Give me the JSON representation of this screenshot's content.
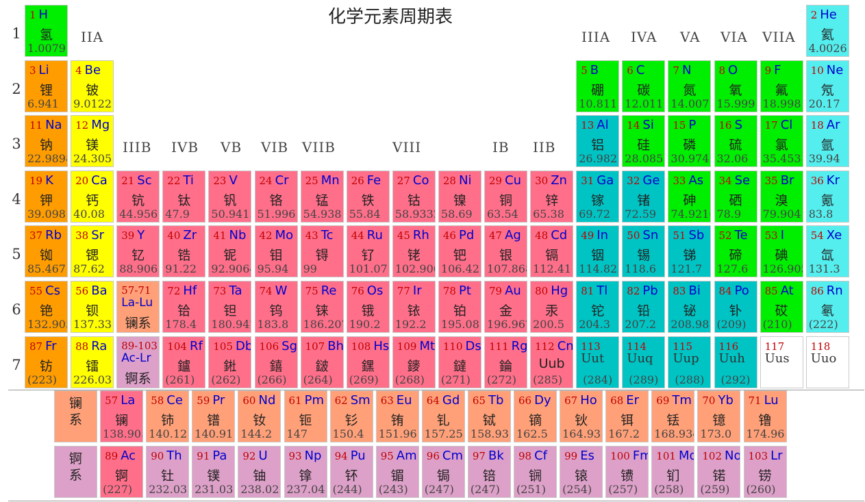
{
  "title": "化学元素周期表",
  "periods": [
    "1",
    "2",
    "3",
    "4",
    "5",
    "6",
    "7"
  ],
  "group_labels": [
    "IIA",
    "IIIA",
    "IVA",
    "VA",
    "VIA",
    "VIIA",
    "IIIB",
    "IVB",
    "VB",
    "VIB",
    "VIIB",
    "VIII",
    "IB",
    "IIB"
  ],
  "colors": {
    "alkali": "#ff9d00",
    "alkaline": "#ffff00",
    "nonmetal": "#00ee00",
    "noble": "#55eeee",
    "transition": "#ff6f8a",
    "poor": "#00c4c4",
    "lanthanide": "#ffa078",
    "actinide": "#dda0c8",
    "unknown": "#ffffff"
  },
  "elements": [
    {
      "n": "1",
      "s": "H",
      "c": "氢",
      "m": "1.0079",
      "t": "nonmetal"
    },
    {
      "n": "2",
      "s": "He",
      "c": "氦",
      "m": "4.0026",
      "t": "noble"
    },
    {
      "n": "3",
      "s": "Li",
      "c": "锂",
      "m": "6.941",
      "t": "alkali"
    },
    {
      "n": "4",
      "s": "Be",
      "c": "铍",
      "m": "9.0122",
      "t": "alkaline"
    },
    {
      "n": "5",
      "s": "B",
      "c": "硼",
      "m": "10.811",
      "t": "nonmetal"
    },
    {
      "n": "6",
      "s": "C",
      "c": "碳",
      "m": "12.011",
      "t": "nonmetal"
    },
    {
      "n": "7",
      "s": "N",
      "c": "氮",
      "m": "14.007",
      "t": "nonmetal"
    },
    {
      "n": "8",
      "s": "O",
      "c": "氧",
      "m": "15.999",
      "t": "nonmetal"
    },
    {
      "n": "9",
      "s": "F",
      "c": "氟",
      "m": "18.998",
      "t": "nonmetal"
    },
    {
      "n": "10",
      "s": "Ne",
      "c": "氖",
      "m": "20.17",
      "t": "noble"
    },
    {
      "n": "11",
      "s": "Na",
      "c": "钠",
      "m": "22.9898",
      "t": "alkali"
    },
    {
      "n": "12",
      "s": "Mg",
      "c": "镁",
      "m": "24.305",
      "t": "alkaline"
    },
    {
      "n": "13",
      "s": "Al",
      "c": "铝",
      "m": "26.982",
      "t": "poor"
    },
    {
      "n": "14",
      "s": "Si",
      "c": "硅",
      "m": "28.085",
      "t": "nonmetal"
    },
    {
      "n": "15",
      "s": "P",
      "c": "磷",
      "m": "30.974",
      "t": "nonmetal"
    },
    {
      "n": "16",
      "s": "S",
      "c": "硫",
      "m": "32.06",
      "t": "nonmetal"
    },
    {
      "n": "17",
      "s": "Cl",
      "c": "氯",
      "m": "35.453",
      "t": "nonmetal"
    },
    {
      "n": "18",
      "s": "Ar",
      "c": "氩",
      "m": "39.94",
      "t": "noble"
    },
    {
      "n": "19",
      "s": "K",
      "c": "钾",
      "m": "39.098",
      "t": "alkali"
    },
    {
      "n": "20",
      "s": "Ca",
      "c": "钙",
      "m": "40.08",
      "t": "alkaline"
    },
    {
      "n": "21",
      "s": "Sc",
      "c": "钪",
      "m": "44.956",
      "t": "transition"
    },
    {
      "n": "22",
      "s": "Ti",
      "c": "钛",
      "m": "47.9",
      "t": "transition"
    },
    {
      "n": "23",
      "s": "V",
      "c": "钒",
      "m": "50.9415",
      "t": "transition"
    },
    {
      "n": "24",
      "s": "Cr",
      "c": "铬",
      "m": "51.996",
      "t": "transition"
    },
    {
      "n": "25",
      "s": "Mn",
      "c": "锰",
      "m": "54.938",
      "t": "transition"
    },
    {
      "n": "26",
      "s": "Fe",
      "c": "铁",
      "m": "55.84",
      "t": "transition"
    },
    {
      "n": "27",
      "s": "Co",
      "c": "钴",
      "m": "58.9332",
      "t": "transition"
    },
    {
      "n": "28",
      "s": "Ni",
      "c": "镍",
      "m": "58.69",
      "t": "transition"
    },
    {
      "n": "29",
      "s": "Cu",
      "c": "铜",
      "m": "63.54",
      "t": "transition"
    },
    {
      "n": "30",
      "s": "Zn",
      "c": "锌",
      "m": "65.38",
      "t": "transition"
    },
    {
      "n": "31",
      "s": "Ga",
      "c": "镓",
      "m": "69.72",
      "t": "poor"
    },
    {
      "n": "32",
      "s": "Ge",
      "c": "锗",
      "m": "72.59",
      "t": "poor"
    },
    {
      "n": "33",
      "s": "As",
      "c": "砷",
      "m": "74.9216",
      "t": "nonmetal"
    },
    {
      "n": "34",
      "s": "Se",
      "c": "硒",
      "m": "78.9",
      "t": "nonmetal"
    },
    {
      "n": "35",
      "s": "Br",
      "c": "溴",
      "m": "79.904",
      "t": "nonmetal"
    },
    {
      "n": "36",
      "s": "Kr",
      "c": "氪",
      "m": "83.8",
      "t": "noble"
    },
    {
      "n": "37",
      "s": "Rb",
      "c": "铷",
      "m": "85.467",
      "t": "alkali"
    },
    {
      "n": "38",
      "s": "Sr",
      "c": "锶",
      "m": "87.62",
      "t": "alkaline"
    },
    {
      "n": "39",
      "s": "Y",
      "c": "钇",
      "m": "88.906",
      "t": "transition"
    },
    {
      "n": "40",
      "s": "Zr",
      "c": "锆",
      "m": "91.22",
      "t": "transition"
    },
    {
      "n": "41",
      "s": "Nb",
      "c": "铌",
      "m": "92.9064",
      "t": "transition"
    },
    {
      "n": "42",
      "s": "Mo",
      "c": "钼",
      "m": "95.94",
      "t": "transition"
    },
    {
      "n": "43",
      "s": "Tc",
      "c": "锝",
      "m": "99",
      "t": "transition"
    },
    {
      "n": "44",
      "s": "Ru",
      "c": "钌",
      "m": "101.07",
      "t": "transition"
    },
    {
      "n": "45",
      "s": "Rh",
      "c": "铑",
      "m": "102.906",
      "t": "transition"
    },
    {
      "n": "46",
      "s": "Pd",
      "c": "钯",
      "m": "106.42",
      "t": "transition"
    },
    {
      "n": "47",
      "s": "Ag",
      "c": "银",
      "m": "107.868",
      "t": "transition"
    },
    {
      "n": "48",
      "s": "Cd",
      "c": "镉",
      "m": "112.41",
      "t": "transition"
    },
    {
      "n": "49",
      "s": "In",
      "c": "铟",
      "m": "114.82",
      "t": "poor"
    },
    {
      "n": "50",
      "s": "Sn",
      "c": "锡",
      "m": "118.6",
      "t": "poor"
    },
    {
      "n": "51",
      "s": "Sb",
      "c": "锑",
      "m": "121.7",
      "t": "poor"
    },
    {
      "n": "52",
      "s": "Te",
      "c": "碲",
      "m": "127.6",
      "t": "nonmetal"
    },
    {
      "n": "53",
      "s": "I",
      "c": "碘",
      "m": "126.905",
      "t": "nonmetal"
    },
    {
      "n": "54",
      "s": "Xe",
      "c": "氙",
      "m": "131.3",
      "t": "noble"
    },
    {
      "n": "55",
      "s": "Cs",
      "c": "铯",
      "m": "132.905",
      "t": "alkali"
    },
    {
      "n": "56",
      "s": "Ba",
      "c": "钡",
      "m": "137.33",
      "t": "alkaline"
    },
    {
      "n": "57-71",
      "s": "La-Lu",
      "c": "镧系",
      "m": "",
      "t": "lanthanide",
      "cls": "block"
    },
    {
      "n": "72",
      "s": "Hf",
      "c": "铪",
      "m": "178.4",
      "t": "transition"
    },
    {
      "n": "73",
      "s": "Ta",
      "c": "钽",
      "m": "180.947",
      "t": "transition"
    },
    {
      "n": "74",
      "s": "W",
      "c": "钨",
      "m": "183.8",
      "t": "transition"
    },
    {
      "n": "75",
      "s": "Re",
      "c": "铼",
      "m": "186.207",
      "t": "transition"
    },
    {
      "n": "76",
      "s": "Os",
      "c": "锇",
      "m": "190.2",
      "t": "transition"
    },
    {
      "n": "77",
      "s": "Ir",
      "c": "铱",
      "m": "192.2",
      "t": "transition"
    },
    {
      "n": "78",
      "s": "Pt",
      "c": "铂",
      "m": "195.08",
      "t": "transition"
    },
    {
      "n": "79",
      "s": "Au",
      "c": "金",
      "m": "196.967",
      "t": "transition"
    },
    {
      "n": "80",
      "s": "Hg",
      "c": "汞",
      "m": "200.5",
      "t": "transition"
    },
    {
      "n": "81",
      "s": "Tl",
      "c": "铊",
      "m": "204.3",
      "t": "poor"
    },
    {
      "n": "82",
      "s": "Pb",
      "c": "铅",
      "m": "207.2",
      "t": "poor"
    },
    {
      "n": "83",
      "s": "Bi",
      "c": "铋",
      "m": "208.98",
      "t": "poor"
    },
    {
      "n": "84",
      "s": "Po",
      "c": "钋",
      "m": "(209)",
      "t": "poor"
    },
    {
      "n": "85",
      "s": "At",
      "c": "砹",
      "m": "(210)",
      "t": "nonmetal"
    },
    {
      "n": "86",
      "s": "Rn",
      "c": "氡",
      "m": "(222)",
      "t": "noble"
    },
    {
      "n": "87",
      "s": "Fr",
      "c": "钫",
      "m": "(223)",
      "t": "alkali"
    },
    {
      "n": "88",
      "s": "Ra",
      "c": "镭",
      "m": "226.03",
      "t": "alkaline"
    },
    {
      "n": "89-103",
      "s": "Ac-Lr",
      "c": "锕系",
      "m": "",
      "t": "actinide",
      "cls": "block"
    },
    {
      "n": "104",
      "s": "Rf",
      "c": "鑪",
      "m": "(261)",
      "t": "transition"
    },
    {
      "n": "105",
      "s": "Db",
      "c": "𨧀",
      "m": "(262)",
      "t": "transition"
    },
    {
      "n": "106",
      "s": "Sg",
      "c": "𨭎",
      "m": "(266)",
      "t": "transition"
    },
    {
      "n": "107",
      "s": "Bh",
      "c": "𨨏",
      "m": "(264)",
      "t": "transition"
    },
    {
      "n": "108",
      "s": "Hs",
      "c": "𨭆",
      "m": "(269)",
      "t": "transition"
    },
    {
      "n": "109",
      "s": "Mt",
      "c": "䥑",
      "m": "(268)",
      "t": "transition"
    },
    {
      "n": "110",
      "s": "Ds",
      "c": "鐽",
      "m": "(271)",
      "t": "transition"
    },
    {
      "n": "111",
      "s": "Rg",
      "c": "錀",
      "m": "(272)",
      "t": "transition"
    },
    {
      "n": "112",
      "s": "Cn",
      "c": "Uub",
      "m": "(285)",
      "t": "transition"
    },
    {
      "n": "113",
      "s": "Uut",
      "c": "",
      "m": "(284)",
      "t": "poor",
      "cls": "super"
    },
    {
      "n": "114",
      "s": "Uuq",
      "c": "",
      "m": "(289)",
      "t": "poor",
      "cls": "super"
    },
    {
      "n": "115",
      "s": "Uup",
      "c": "",
      "m": "(288)",
      "t": "poor",
      "cls": "super"
    },
    {
      "n": "116",
      "s": "Uuh",
      "c": "",
      "m": "(292)",
      "t": "poor",
      "cls": "super"
    },
    {
      "n": "117",
      "s": "Uus",
      "c": "",
      "m": "",
      "t": "unknown",
      "cls": "super"
    },
    {
      "n": "118",
      "s": "Uuo",
      "c": "",
      "m": "",
      "t": "unknown",
      "cls": "super"
    },
    {
      "n": "",
      "s": "",
      "c": "镧\n系",
      "m": "",
      "t": "lanthanide",
      "cls": "series-label"
    },
    {
      "n": "57",
      "s": "La",
      "c": "镧",
      "m": "138.905",
      "t": "transition"
    },
    {
      "n": "58",
      "s": "Ce",
      "c": "铈",
      "m": "140.12",
      "t": "lanthanide"
    },
    {
      "n": "59",
      "s": "Pr",
      "c": "镨",
      "m": "140.91",
      "t": "lanthanide"
    },
    {
      "n": "60",
      "s": "Nd",
      "c": "钕",
      "m": "144.2",
      "t": "lanthanide"
    },
    {
      "n": "61",
      "s": "Pm",
      "c": "钷",
      "m": "147",
      "t": "lanthanide"
    },
    {
      "n": "62",
      "s": "Sm",
      "c": "钐",
      "m": "150.4",
      "t": "lanthanide"
    },
    {
      "n": "63",
      "s": "Eu",
      "c": "铕",
      "m": "151.96",
      "t": "lanthanide"
    },
    {
      "n": "64",
      "s": "Gd",
      "c": "钆",
      "m": "157.25",
      "t": "lanthanide"
    },
    {
      "n": "65",
      "s": "Tb",
      "c": "铽",
      "m": "158.93",
      "t": "lanthanide"
    },
    {
      "n": "66",
      "s": "Dy",
      "c": "镝",
      "m": "162.5",
      "t": "lanthanide"
    },
    {
      "n": "67",
      "s": "Ho",
      "c": "钬",
      "m": "164.93",
      "t": "lanthanide"
    },
    {
      "n": "68",
      "s": "Er",
      "c": "铒",
      "m": "167.2",
      "t": "lanthanide"
    },
    {
      "n": "69",
      "s": "Tm",
      "c": "铥",
      "m": "168.934",
      "t": "lanthanide"
    },
    {
      "n": "70",
      "s": "Yb",
      "c": "镱",
      "m": "173.0",
      "t": "lanthanide"
    },
    {
      "n": "71",
      "s": "Lu",
      "c": "镥",
      "m": "174.96",
      "t": "lanthanide"
    },
    {
      "n": "",
      "s": "",
      "c": "锕\n系",
      "m": "",
      "t": "actinide",
      "cls": "series-label"
    },
    {
      "n": "89",
      "s": "Ac",
      "c": "锕",
      "m": "(227)",
      "t": "transition"
    },
    {
      "n": "90",
      "s": "Th",
      "c": "钍",
      "m": "232.03",
      "t": "actinide"
    },
    {
      "n": "91",
      "s": "Pa",
      "c": "镤",
      "m": "231.03",
      "t": "actinide"
    },
    {
      "n": "92",
      "s": "U",
      "c": "铀",
      "m": "238.02",
      "t": "actinide"
    },
    {
      "n": "93",
      "s": "Np",
      "c": "镎",
      "m": "237.04",
      "t": "actinide"
    },
    {
      "n": "94",
      "s": "Pu",
      "c": "钚",
      "m": "(244)",
      "t": "actinide"
    },
    {
      "n": "95",
      "s": "Am",
      "c": "镅",
      "m": "(243)",
      "t": "actinide"
    },
    {
      "n": "96",
      "s": "Cm",
      "c": "锔",
      "m": "(247)",
      "t": "actinide"
    },
    {
      "n": "97",
      "s": "Bk",
      "c": "锫",
      "m": "(247)",
      "t": "actinide"
    },
    {
      "n": "98",
      "s": "Cf",
      "c": "锎",
      "m": "(251)",
      "t": "actinide"
    },
    {
      "n": "99",
      "s": "Es",
      "c": "锿",
      "m": "(254)",
      "t": "actinide"
    },
    {
      "n": "100",
      "s": "Fm",
      "c": "镄",
      "m": "(257)",
      "t": "actinide"
    },
    {
      "n": "101",
      "s": "Md",
      "c": "钔",
      "m": "(258)",
      "t": "actinide"
    },
    {
      "n": "102",
      "s": "No",
      "c": "锘",
      "m": "(259)",
      "t": "actinide"
    },
    {
      "n": "103",
      "s": "Lr",
      "c": "铹",
      "m": "(260)",
      "t": "actinide"
    }
  ]
}
